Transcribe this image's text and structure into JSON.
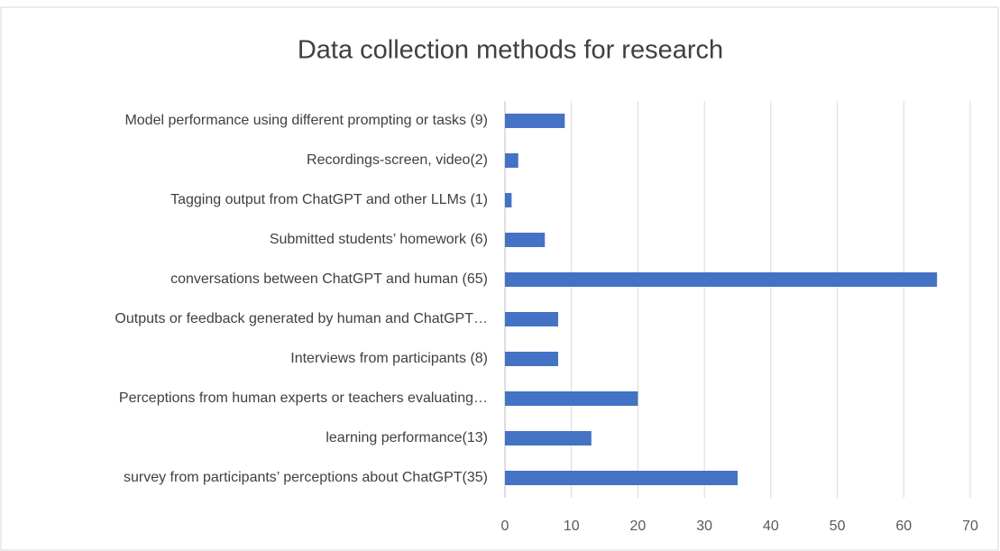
{
  "chart_data": {
    "type": "bar",
    "orientation": "horizontal",
    "title": "Data collection methods for research",
    "categories": [
      "Model performance using different prompting or tasks (9)",
      "Recordings-screen, video(2)",
      "Tagging output from ChatGPT and other LLMs (1)",
      "Submitted students’ homework (6)",
      "conversations between ChatGPT and human (65)",
      "Outputs or feedback generated by human and ChatGPT…",
      "Interviews from participants (8)",
      "Perceptions from human experts or teachers evaluating…",
      "learning performance(13)",
      "survey from participants’ perceptions about ChatGPT(35)"
    ],
    "values": [
      9,
      2,
      1,
      6,
      65,
      8,
      8,
      20,
      13,
      35
    ],
    "color": "#4472c4",
    "xlim": [
      0,
      70
    ],
    "xticks": [
      0,
      10,
      20,
      30,
      40,
      50,
      60,
      70
    ],
    "grid": true
  }
}
